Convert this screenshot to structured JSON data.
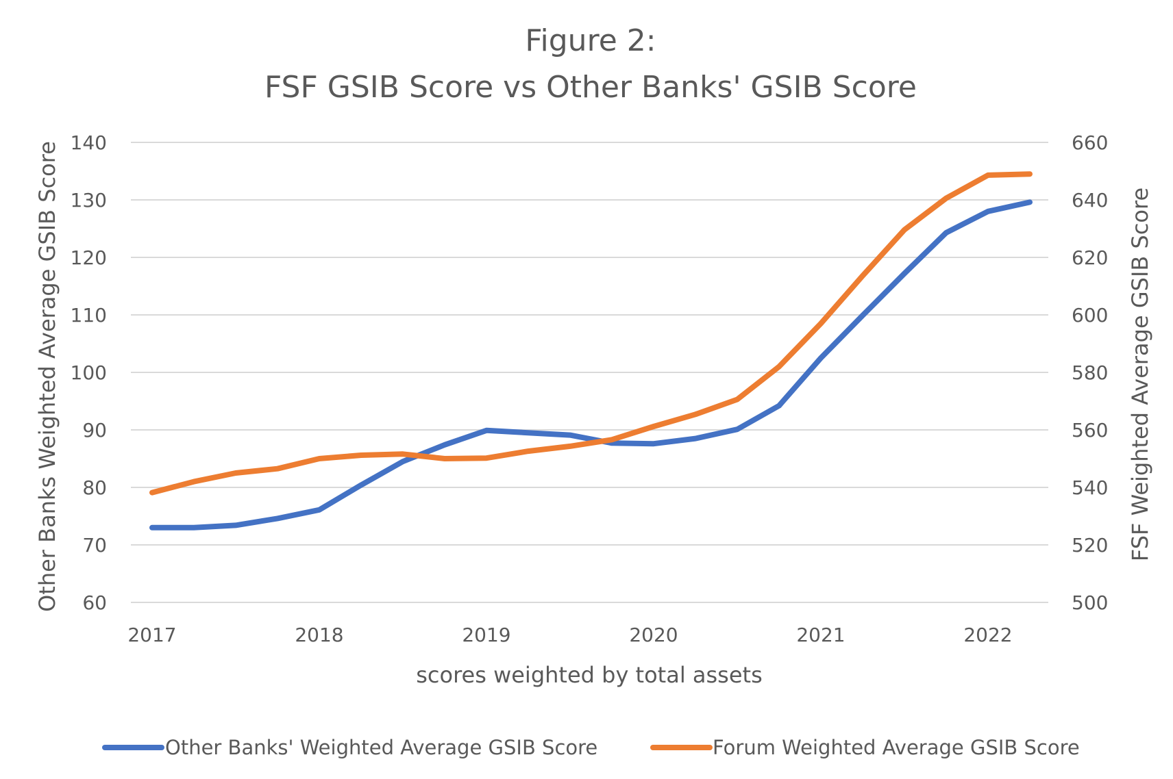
{
  "chart_data": {
    "type": "line",
    "title_line1": "Figure 2:",
    "title_line2": "FSF GSIB Score vs Other Banks' GSIB Score",
    "xlabel": "scores weighted by total assets",
    "ylabel_left": "Other Banks Weighted Average GSIB Score",
    "ylabel_right": "FSF Weighted Average GSIB Score",
    "ylim_left": [
      60,
      140
    ],
    "ylim_right": [
      500,
      660
    ],
    "yticks_left": [
      "60",
      "70",
      "80",
      "90",
      "100",
      "110",
      "120",
      "130",
      "140"
    ],
    "yticks_right": [
      "500",
      "520",
      "540",
      "560",
      "580",
      "600",
      "620",
      "640",
      "660"
    ],
    "x_tick_labels": [
      "2017",
      "2018",
      "2019",
      "2020",
      "2021",
      "2022"
    ],
    "grid": true,
    "legend_position": "bottom",
    "x": [
      2017.0,
      2017.25,
      2017.5,
      2017.75,
      2018.0,
      2018.25,
      2018.5,
      2018.75,
      2019.0,
      2019.25,
      2019.5,
      2019.75,
      2020.0,
      2020.25,
      2020.5,
      2020.75,
      2021.0,
      2021.25,
      2021.5,
      2021.75,
      2022.0,
      2022.25
    ],
    "series": [
      {
        "name": "Other Banks' Weighted Average GSIB Score",
        "axis": "left",
        "color": "#4472c4",
        "values": [
          73.0,
          73.0,
          73.4,
          74.6,
          76.1,
          80.4,
          84.5,
          87.4,
          89.9,
          89.5,
          89.1,
          87.7,
          87.6,
          88.5,
          90.1,
          94.2,
          102.5,
          109.9,
          117.2,
          124.3,
          128.0,
          129.6
        ]
      },
      {
        "name": "Forum Weighted Average GSIB Score",
        "axis": "right",
        "color": "#ed7d31",
        "values": [
          538.2,
          542.0,
          545.0,
          546.5,
          550.0,
          551.2,
          551.6,
          550.0,
          550.2,
          552.6,
          554.3,
          556.6,
          561.2,
          565.4,
          570.6,
          582.0,
          597.0,
          613.6,
          629.6,
          640.6,
          648.6,
          649.0
        ]
      }
    ]
  }
}
